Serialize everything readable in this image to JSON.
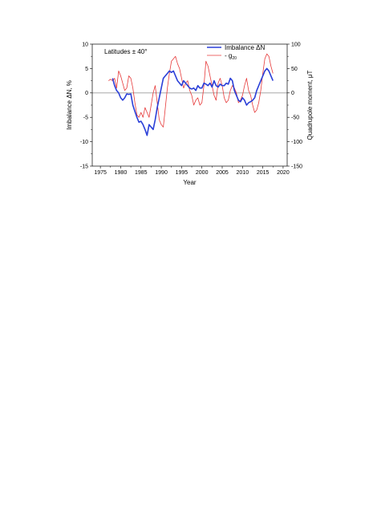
{
  "chart_data": {
    "type": "line",
    "xlabel": "Year",
    "ylabel_left": "Imbalance ΔN, %",
    "ylabel_right": "Quadrupole moment, μT",
    "annotation": "Latitudes ± 40°",
    "xlim": [
      1973,
      2021
    ],
    "xticks": [
      1975,
      1980,
      1985,
      1990,
      1995,
      2000,
      2005,
      2010,
      2015,
      2020
    ],
    "ylim_left": [
      -15,
      10
    ],
    "yticks_left": [
      -15,
      -10,
      -5,
      0,
      5,
      10
    ],
    "ylim_right": [
      -150,
      100
    ],
    "yticks_right": [
      -150,
      -100,
      -50,
      0,
      50,
      100
    ],
    "zero_line": true,
    "legend_placement": "top-right",
    "series": [
      {
        "name": "Imbalance ΔN",
        "axis": "left",
        "color": "#2a3fd8",
        "x": [
          1978,
          1978.5,
          1979,
          1979.5,
          1980,
          1980.5,
          1981,
          1981.5,
          1982,
          1982.5,
          1983,
          1983.5,
          1984,
          1984.5,
          1985,
          1985.5,
          1986,
          1986.5,
          1987,
          1987.5,
          1988,
          1988.5,
          1989,
          1989.5,
          1990,
          1990.5,
          1991,
          1991.5,
          1992,
          1992.5,
          1993,
          1993.5,
          1994,
          1994.5,
          1995,
          1995.5,
          1996,
          1996.5,
          1997,
          1997.5,
          1998,
          1998.5,
          1999,
          1999.5,
          2000,
          2000.5,
          2001,
          2001.5,
          2002,
          2002.5,
          2003,
          2003.5,
          2004,
          2004.5,
          2005,
          2005.5,
          2006,
          2006.5,
          2007,
          2007.5,
          2008,
          2008.5,
          2009,
          2009.5,
          2010,
          2010.5,
          2011,
          2011.5,
          2012,
          2012.5,
          2013,
          2013.5,
          2014,
          2014.5,
          2015,
          2015.5,
          2016,
          2016.5,
          2017,
          2017.5
        ],
        "values": [
          3.0,
          1.5,
          0.5,
          0.0,
          -1.0,
          -1.5,
          -1.0,
          -0.2,
          -0.3,
          -0.2,
          -2.5,
          -3.8,
          -5.0,
          -6.0,
          -5.8,
          -6.5,
          -7.5,
          -8.7,
          -6.5,
          -7.0,
          -7.5,
          -5.5,
          -3.0,
          -1.0,
          1.0,
          3.0,
          3.5,
          4.0,
          4.5,
          4.2,
          4.5,
          3.5,
          2.5,
          2.0,
          1.5,
          2.5,
          2.0,
          1.5,
          1.0,
          0.8,
          1.0,
          0.5,
          1.5,
          1.0,
          1.0,
          2.0,
          1.8,
          1.5,
          2.0,
          1.2,
          2.5,
          1.5,
          1.2,
          1.8,
          1.5,
          1.5,
          2.0,
          1.8,
          3.0,
          2.5,
          0.5,
          -0.5,
          -1.5,
          -1.8,
          -1.0,
          -1.5,
          -2.5,
          -2.0,
          -1.8,
          -1.5,
          -1.0,
          0.5,
          1.5,
          2.5,
          3.5,
          4.5,
          5.0,
          4.5,
          3.5,
          2.5
        ]
      },
      {
        "name": "- g",
        "name_subscript": "20",
        "axis": "right",
        "color": "#e63a3a",
        "x": [
          1977,
          1977.5,
          1978,
          1978.5,
          1979,
          1979.5,
          1980,
          1980.5,
          1981,
          1981.5,
          1982,
          1982.5,
          1983,
          1983.5,
          1984,
          1984.5,
          1985,
          1985.5,
          1986,
          1986.5,
          1987,
          1987.5,
          1988,
          1988.5,
          1989,
          1989.5,
          1990,
          1990.5,
          1991,
          1991.5,
          1992,
          1992.5,
          1993,
          1993.5,
          1994,
          1994.5,
          1995,
          1995.5,
          1996,
          1996.5,
          1997,
          1997.5,
          1998,
          1998.5,
          1999,
          1999.5,
          2000,
          2000.5,
          2001,
          2001.5,
          2002,
          2002.5,
          2003,
          2003.5,
          2004,
          2004.5,
          2005,
          2005.5,
          2006,
          2006.5,
          2007,
          2007.5,
          2008,
          2008.5,
          2009,
          2009.5,
          2010,
          2010.5,
          2011,
          2011.5,
          2012,
          2012.5,
          2013,
          2013.5,
          2014,
          2014.5,
          2015,
          2015.5,
          2016,
          2016.5,
          2017,
          2017.5
        ],
        "values": [
          25,
          28,
          25,
          30,
          10,
          45,
          35,
          20,
          5,
          10,
          35,
          30,
          10,
          -20,
          -45,
          -50,
          -40,
          -50,
          -30,
          -40,
          -50,
          -25,
          0,
          15,
          -20,
          -55,
          -65,
          -70,
          -30,
          10,
          40,
          65,
          70,
          75,
          60,
          50,
          30,
          10,
          20,
          25,
          5,
          -5,
          -25,
          -15,
          -10,
          -25,
          -20,
          15,
          65,
          55,
          35,
          15,
          -5,
          -15,
          20,
          30,
          15,
          -10,
          -20,
          -15,
          5,
          15,
          10,
          0,
          -20,
          -15,
          -5,
          15,
          30,
          5,
          -5,
          -25,
          -40,
          -35,
          -20,
          5,
          40,
          70,
          80,
          75,
          55,
          40
        ]
      }
    ]
  }
}
